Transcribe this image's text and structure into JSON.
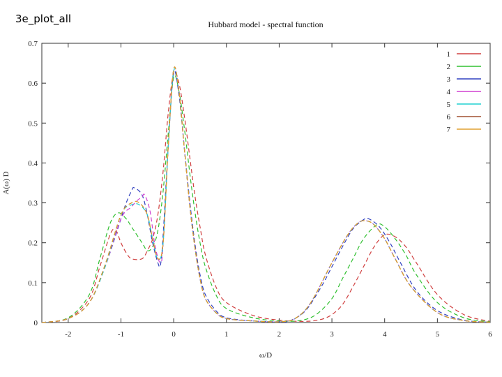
{
  "slide": {
    "title": "3e_plot_all"
  },
  "chart_data": {
    "type": "line",
    "title": "Hubbard model - spectral function",
    "xlabel": "ω/D",
    "ylabel": "A(ω) D",
    "xlim": [
      -2.5,
      6
    ],
    "ylim": [
      0,
      0.7
    ],
    "xticks": [
      -2,
      -1,
      0,
      1,
      2,
      3,
      4,
      5,
      6
    ],
    "yticks": [
      0,
      0.1,
      0.2,
      0.3,
      0.4,
      0.5,
      0.6,
      0.7
    ],
    "legend_position": "top-right",
    "grid": false,
    "series": [
      {
        "name": "1",
        "color": "#d04040",
        "dash": "6,4",
        "x": [
          -2.5,
          -2,
          -1.6,
          -1.4,
          -1.2,
          -1.1,
          -1.0,
          -0.9,
          -0.8,
          -0.6,
          -0.5,
          -0.4,
          -0.3,
          -0.2,
          -0.1,
          0,
          0.1,
          0.2,
          0.3,
          0.4,
          0.5,
          0.6,
          0.8,
          1.0,
          1.5,
          2.0,
          2.5,
          2.8,
          3.0,
          3.2,
          3.4,
          3.6,
          3.8,
          4.0,
          4.2,
          4.4,
          4.6,
          5.0,
          5.5,
          6.0
        ],
        "y": [
          0,
          0.01,
          0.06,
          0.14,
          0.222,
          0.232,
          0.2,
          0.175,
          0.16,
          0.16,
          0.18,
          0.21,
          0.27,
          0.38,
          0.53,
          0.625,
          0.6,
          0.52,
          0.42,
          0.32,
          0.24,
          0.17,
          0.09,
          0.05,
          0.018,
          0.006,
          0.003,
          0.008,
          0.02,
          0.045,
          0.09,
          0.14,
          0.19,
          0.22,
          0.215,
          0.19,
          0.15,
          0.07,
          0.02,
          0.003
        ]
      },
      {
        "name": "2",
        "color": "#30c030",
        "dash": "6,4",
        "x": [
          -2.5,
          -2,
          -1.6,
          -1.4,
          -1.2,
          -1.05,
          -0.9,
          -0.8,
          -0.6,
          -0.5,
          -0.4,
          -0.3,
          -0.2,
          -0.1,
          0,
          0.1,
          0.2,
          0.3,
          0.4,
          0.5,
          0.6,
          0.8,
          1.0,
          1.5,
          2.0,
          2.4,
          2.7,
          3.0,
          3.2,
          3.4,
          3.6,
          3.85,
          4.0,
          4.2,
          4.4,
          4.6,
          5.0,
          5.5,
          6.0
        ],
        "y": [
          0,
          0.012,
          0.07,
          0.16,
          0.25,
          0.275,
          0.26,
          0.24,
          0.2,
          0.18,
          0.19,
          0.23,
          0.33,
          0.48,
          0.615,
          0.58,
          0.49,
          0.38,
          0.28,
          0.2,
          0.14,
          0.07,
          0.035,
          0.012,
          0.004,
          0.005,
          0.02,
          0.06,
          0.11,
          0.16,
          0.21,
          0.245,
          0.24,
          0.21,
          0.17,
          0.12,
          0.05,
          0.012,
          0.002
        ]
      },
      {
        "name": "3",
        "color": "#3040c0",
        "dash": "6,4",
        "x": [
          -2.5,
          -2,
          -1.6,
          -1.3,
          -1.0,
          -0.9,
          -0.8,
          -0.75,
          -0.6,
          -0.5,
          -0.4,
          -0.3,
          -0.25,
          -0.2,
          -0.1,
          0,
          0.1,
          0.2,
          0.3,
          0.4,
          0.5,
          0.6,
          0.8,
          1.0,
          1.5,
          2.0,
          2.2,
          2.5,
          2.8,
          3.0,
          3.2,
          3.4,
          3.6,
          3.7,
          3.9,
          4.1,
          4.3,
          4.6,
          5.0,
          5.5,
          6.0
        ],
        "y": [
          0,
          0.01,
          0.05,
          0.14,
          0.26,
          0.3,
          0.33,
          0.338,
          0.32,
          0.27,
          0.2,
          0.15,
          0.145,
          0.22,
          0.45,
          0.625,
          0.57,
          0.44,
          0.31,
          0.2,
          0.12,
          0.07,
          0.03,
          0.012,
          0.004,
          0.002,
          0.004,
          0.03,
          0.09,
          0.14,
          0.19,
          0.235,
          0.258,
          0.26,
          0.24,
          0.2,
          0.15,
          0.08,
          0.03,
          0.006,
          0.001
        ]
      },
      {
        "name": "4",
        "color": "#d040d0",
        "dash": "6,4",
        "x": [
          -2.5,
          -2,
          -1.6,
          -1.3,
          -1.0,
          -0.8,
          -0.7,
          -0.6,
          -0.55,
          -0.45,
          -0.35,
          -0.25,
          -0.2,
          -0.1,
          0,
          0.1,
          0.2,
          0.3,
          0.4,
          0.5,
          0.6,
          0.8,
          1.0,
          1.5,
          2.0,
          2.3,
          2.6,
          3.0,
          3.3,
          3.5,
          3.65,
          3.8,
          4.0,
          4.2,
          4.5,
          5.0,
          5.5,
          6.0
        ],
        "y": [
          0,
          0.01,
          0.05,
          0.14,
          0.26,
          0.29,
          0.305,
          0.315,
          0.32,
          0.28,
          0.19,
          0.15,
          0.2,
          0.45,
          0.63,
          0.58,
          0.44,
          0.3,
          0.19,
          0.11,
          0.06,
          0.025,
          0.01,
          0.004,
          0.002,
          0.01,
          0.05,
          0.15,
          0.22,
          0.25,
          0.255,
          0.245,
          0.21,
          0.16,
          0.09,
          0.025,
          0.005,
          0.001
        ]
      },
      {
        "name": "5",
        "color": "#20d0d0",
        "dash": "6,4",
        "x": [
          -2.5,
          -2,
          -1.6,
          -1.3,
          -1.0,
          -0.8,
          -0.65,
          -0.5,
          -0.4,
          -0.3,
          -0.2,
          -0.1,
          0,
          0.1,
          0.2,
          0.3,
          0.4,
          0.5,
          0.6,
          0.8,
          1.0,
          1.5,
          2.0,
          2.3,
          2.6,
          3.0,
          3.3,
          3.5,
          3.65,
          3.8,
          4.0,
          4.2,
          4.5,
          5.0,
          5.5,
          6.0
        ],
        "y": [
          0,
          0.01,
          0.05,
          0.14,
          0.27,
          0.295,
          0.295,
          0.27,
          0.21,
          0.16,
          0.2,
          0.45,
          0.63,
          0.58,
          0.44,
          0.3,
          0.19,
          0.11,
          0.06,
          0.025,
          0.01,
          0.004,
          0.002,
          0.01,
          0.05,
          0.15,
          0.22,
          0.25,
          0.255,
          0.245,
          0.21,
          0.16,
          0.09,
          0.025,
          0.005,
          0.001
        ]
      },
      {
        "name": "6",
        "color": "#a05030",
        "dash": "6,4",
        "x": [
          -2.5,
          -2,
          -1.6,
          -1.3,
          -1.0,
          -0.8,
          -0.65,
          -0.5,
          -0.4,
          -0.3,
          -0.2,
          -0.1,
          0,
          0.1,
          0.2,
          0.3,
          0.4,
          0.5,
          0.6,
          0.8,
          1.0,
          1.5,
          2.0,
          2.3,
          2.6,
          3.0,
          3.3,
          3.5,
          3.65,
          3.8,
          4.0,
          4.2,
          4.5,
          5.0,
          5.5,
          6.0
        ],
        "y": [
          0,
          0.01,
          0.05,
          0.145,
          0.27,
          0.3,
          0.3,
          0.27,
          0.21,
          0.16,
          0.2,
          0.45,
          0.635,
          0.58,
          0.44,
          0.3,
          0.19,
          0.11,
          0.06,
          0.025,
          0.01,
          0.004,
          0.002,
          0.01,
          0.05,
          0.15,
          0.22,
          0.25,
          0.255,
          0.245,
          0.21,
          0.16,
          0.09,
          0.025,
          0.005,
          0.001
        ]
      },
      {
        "name": "7",
        "color": "#e0a030",
        "dash": "6,4",
        "x": [
          -2.5,
          -2,
          -1.6,
          -1.3,
          -1.0,
          -0.8,
          -0.65,
          -0.5,
          -0.4,
          -0.3,
          -0.2,
          -0.1,
          0,
          0.1,
          0.2,
          0.3,
          0.4,
          0.5,
          0.6,
          0.8,
          1.0,
          1.5,
          2.0,
          2.3,
          2.6,
          3.0,
          3.3,
          3.5,
          3.65,
          3.8,
          4.0,
          4.2,
          4.5,
          5.0,
          5.5,
          6.0
        ],
        "y": [
          0,
          0.01,
          0.05,
          0.145,
          0.27,
          0.3,
          0.3,
          0.27,
          0.21,
          0.16,
          0.2,
          0.45,
          0.635,
          0.58,
          0.44,
          0.3,
          0.19,
          0.11,
          0.06,
          0.025,
          0.01,
          0.004,
          0.002,
          0.01,
          0.05,
          0.15,
          0.22,
          0.25,
          0.255,
          0.245,
          0.21,
          0.16,
          0.09,
          0.025,
          0.005,
          0.001
        ]
      }
    ]
  }
}
